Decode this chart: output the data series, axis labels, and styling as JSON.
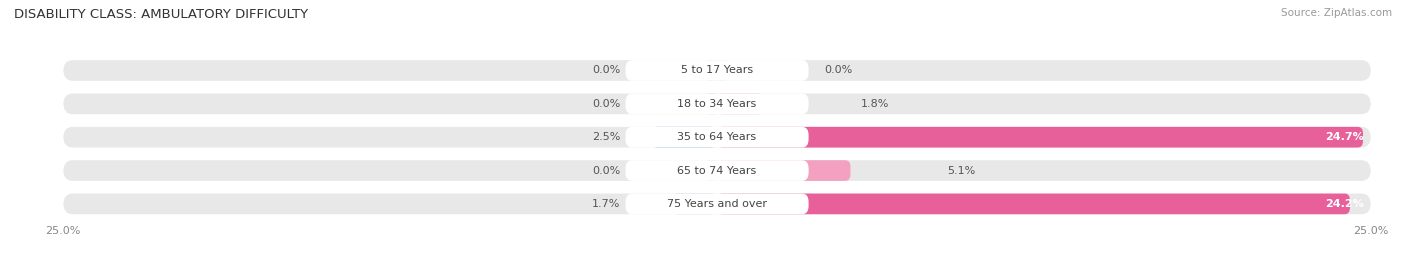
{
  "title": "DISABILITY CLASS: AMBULATORY DIFFICULTY",
  "source": "Source: ZipAtlas.com",
  "categories": [
    "5 to 17 Years",
    "18 to 34 Years",
    "35 to 64 Years",
    "65 to 74 Years",
    "75 Years and over"
  ],
  "male_values": [
    0.0,
    0.0,
    2.5,
    0.0,
    1.7
  ],
  "female_values": [
    0.0,
    1.8,
    24.7,
    5.1,
    24.2
  ],
  "x_max": 25.0,
  "male_color": "#a8c4e0",
  "female_color": "#f4a0c0",
  "male_strong_color": "#6699cc",
  "female_strong_color": "#e8609a",
  "bar_bg_color": "#e8e8e8",
  "bar_height": 0.62,
  "legend_male_color": "#6699cc",
  "legend_female_color": "#e8609a",
  "title_fontsize": 9.5,
  "label_fontsize": 8.0,
  "category_fontsize": 8.0,
  "tick_fontsize": 8.0,
  "source_fontsize": 7.5
}
